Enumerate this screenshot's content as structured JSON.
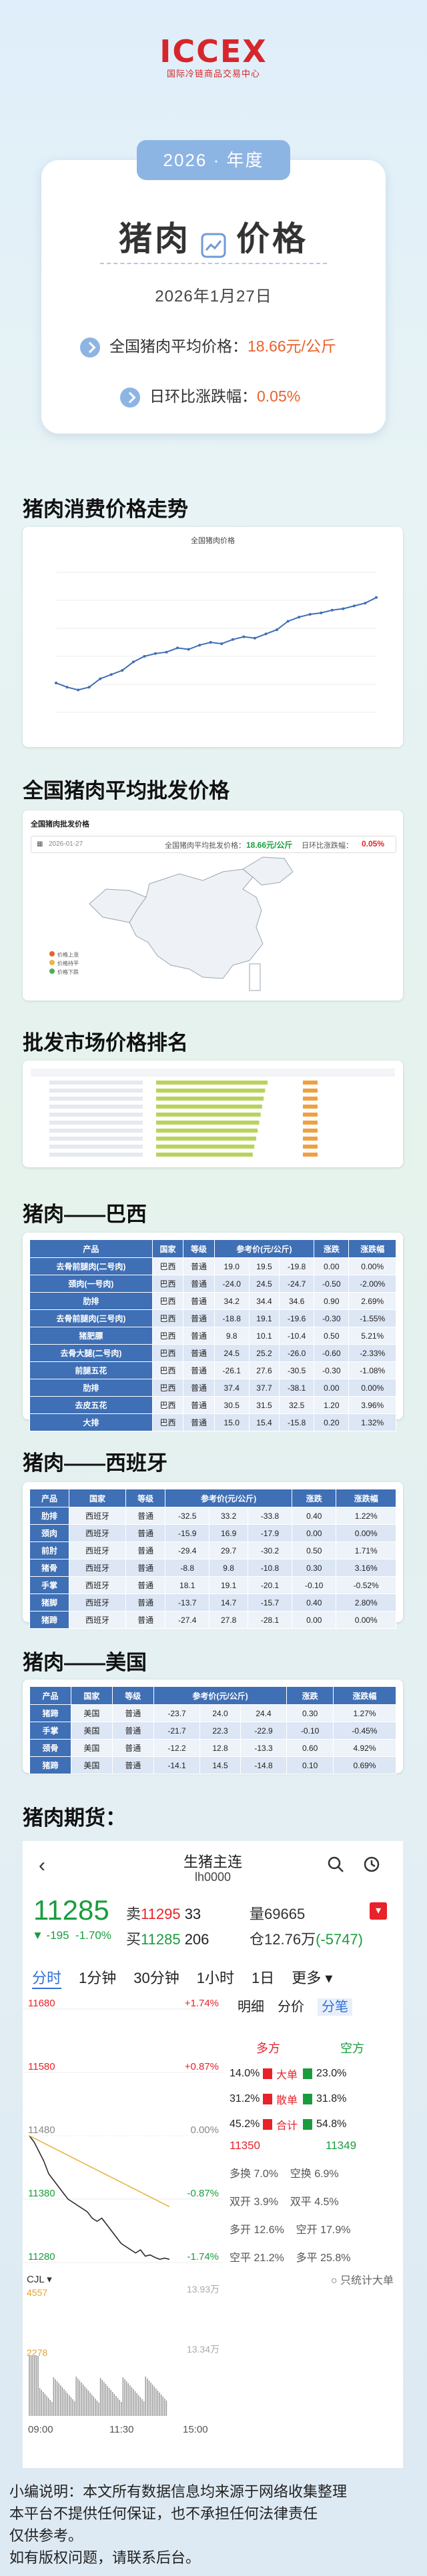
{
  "header": {
    "logo": "ICCEX",
    "logo_sub": "国际冷链商品交易中心",
    "year": "2026 · 年度",
    "title_left": "猪肉",
    "title_right": "价格",
    "date": "2026年1月27日",
    "avg_label": "全国猪肉平均价格：",
    "avg_value": "18.66元/公斤",
    "chg_label": "日环比涨跌幅：",
    "chg_value": "0.05%"
  },
  "sections": {
    "trend": "猪肉消费价格走势",
    "wholesale": "全国猪肉平均批发价格",
    "ranking": "批发市场价格排名",
    "brazil": "猪肉——巴西",
    "spain": "猪肉——西班牙",
    "usa": "猪肉——美国",
    "futures": "猪肉期货："
  },
  "chart_data": [
    {
      "type": "line",
      "title": "全国猪肉价格",
      "series": [
        {
          "values": [
            22.1,
            21.8,
            21.6,
            21.8,
            22.4,
            22.7,
            23.0,
            23.6,
            24.0,
            24.2,
            24.3,
            24.6,
            24.5,
            24.8,
            25.0,
            24.9,
            25.2,
            25.4,
            25.3,
            25.6,
            25.9,
            26.5,
            26.8,
            27.0,
            27.1,
            27.3,
            27.4,
            27.6,
            27.8,
            28.2
          ]
        }
      ],
      "ylim": [
        20,
        30
      ]
    },
    {
      "type": "map",
      "title": "全国猪肉批发价格",
      "date": "2026-01-27",
      "avg_label": "全国猪肉平均批发价格：",
      "avg_value": "18.66元/公斤",
      "chg_label": "日环比涨跌幅：",
      "chg_value": "0.05%",
      "legend": [
        "价格上涨",
        "价格持平",
        "价格下跌"
      ]
    },
    {
      "type": "bar",
      "title": "批发市场价格排名",
      "values": [
        22.6,
        22.1,
        21.8,
        21.5,
        21.2,
        20.9,
        20.6,
        20.3,
        19.9,
        19.6
      ]
    }
  ],
  "brazil": {
    "headers": [
      "产品",
      "国家",
      "等级",
      "参考价(元/公斤)",
      "",
      "",
      "涨跌",
      "涨跌幅"
    ],
    "rows": [
      [
        "去骨前腿肉(二号肉)",
        "巴西",
        "普通",
        "19.0",
        "19.5",
        "-19.8",
        "0.00",
        "0.00%"
      ],
      [
        "颈肉(一号肉)",
        "巴西",
        "普通",
        "-24.0",
        "24.5",
        "-24.7",
        "-0.50",
        "-2.00%"
      ],
      [
        "肋排",
        "巴西",
        "普通",
        "34.2",
        "34.4",
        "34.6",
        "0.90",
        "2.69%"
      ],
      [
        "去骨前腿肉(三号肉)",
        "巴西",
        "普通",
        "-18.8",
        "19.1",
        "-19.6",
        "-0.30",
        "-1.55%"
      ],
      [
        "猪肥膘",
        "巴西",
        "普通",
        "9.8",
        "10.1",
        "-10.4",
        "0.50",
        "5.21%"
      ],
      [
        "去骨大腿(二号肉)",
        "巴西",
        "普通",
        "24.5",
        "25.2",
        "-26.0",
        "-0.60",
        "-2.33%"
      ],
      [
        "前腿五花",
        "巴西",
        "普通",
        "-26.1",
        "27.6",
        "-30.5",
        "-0.30",
        "-1.08%"
      ],
      [
        "肋排",
        "巴西",
        "普通",
        "37.4",
        "37.7",
        "-38.1",
        "0.00",
        "0.00%"
      ],
      [
        "去皮五花",
        "巴西",
        "普通",
        "30.5",
        "31.5",
        "32.5",
        "1.20",
        "3.96%"
      ],
      [
        "大排",
        "巴西",
        "普通",
        "15.0",
        "15.4",
        "-15.8",
        "0.20",
        "1.32%"
      ]
    ]
  },
  "spain": {
    "headers": [
      "产品",
      "国家",
      "等级",
      "参考价(元/公斤)",
      "",
      "",
      "涨跌",
      "涨跌幅"
    ],
    "rows": [
      [
        "肋排",
        "西班牙",
        "普通",
        "-32.5",
        "33.2",
        "-33.8",
        "0.40",
        "1.22%"
      ],
      [
        "颈肉",
        "西班牙",
        "普通",
        "-15.9",
        "16.9",
        "-17.9",
        "0.00",
        "0.00%"
      ],
      [
        "前肘",
        "西班牙",
        "普通",
        "-29.4",
        "29.7",
        "-30.2",
        "0.50",
        "1.71%"
      ],
      [
        "猪骨",
        "西班牙",
        "普通",
        "-8.8",
        "9.8",
        "-10.8",
        "0.30",
        "3.16%"
      ],
      [
        "手掌",
        "西班牙",
        "普通",
        "18.1",
        "19.1",
        "-20.1",
        "-0.10",
        "-0.52%"
      ],
      [
        "猪脚",
        "西班牙",
        "普通",
        "-13.7",
        "14.7",
        "-15.7",
        "0.40",
        "2.80%"
      ],
      [
        "猪蹄",
        "西班牙",
        "普通",
        "-27.4",
        "27.8",
        "-28.1",
        "0.00",
        "0.00%"
      ]
    ]
  },
  "usa": {
    "headers": [
      "产品",
      "国家",
      "等级",
      "参考价(元/公斤)",
      "",
      "",
      "涨跌",
      "涨跌幅"
    ],
    "rows": [
      [
        "猪蹄",
        "美国",
        "普通",
        "-23.7",
        "24.0",
        "24.4",
        "0.30",
        "1.27%"
      ],
      [
        "手掌",
        "美国",
        "普通",
        "-21.7",
        "22.3",
        "-22.9",
        "-0.10",
        "-0.45%"
      ],
      [
        "颈骨",
        "美国",
        "普通",
        "-12.2",
        "12.8",
        "-13.3",
        "0.60",
        "4.92%"
      ],
      [
        "猪蹄",
        "美国",
        "普通",
        "-14.1",
        "14.5",
        "-14.8",
        "0.10",
        "0.69%"
      ]
    ]
  },
  "futures": {
    "name": "生猪主连",
    "code": "lh0000",
    "price": "11285",
    "sell_label": "卖",
    "sell_price": "11295",
    "sell_qty": "33",
    "buy_label": "买",
    "buy_price": "11285",
    "buy_qty": "206",
    "change": "▼ -195",
    "change_pct": "-1.70%",
    "vol_label": "量",
    "vol": "69665",
    "oi_label": "仓",
    "oi": "12.76万",
    "oi_chg": "(-5747)",
    "tabs": [
      "分时",
      "1分钟",
      "30分钟",
      "1小时",
      "1日",
      "更多 ▾"
    ],
    "side_tabs": [
      "明细",
      "分价",
      "分笔"
    ],
    "y_labels": [
      "11680",
      "11580",
      "11480",
      "11380",
      "11280"
    ],
    "pct_labels": [
      "+1.74%",
      "+0.87%",
      "0.00%",
      "-0.87%",
      "-1.74%"
    ],
    "vol_labels": [
      "4557",
      "2278"
    ],
    "oi_labels": [
      "13.93万",
      "13.34万"
    ],
    "times": [
      "09:00",
      "11:30",
      "15:00"
    ],
    "cjl": "CJL ▾",
    "side": {
      "duo": "多方",
      "kong": "空方",
      "rows": [
        [
          "14.0%",
          "大单",
          "23.0%"
        ],
        [
          "31.2%",
          "散单",
          "31.8%"
        ],
        [
          "45.2%",
          "合计",
          "54.8%"
        ]
      ],
      "px_l": "11350",
      "px_r": "11349",
      "stats": [
        [
          "多换",
          "7.0%",
          "空换",
          "6.9%"
        ],
        [
          "双开",
          "3.9%",
          "双平",
          "4.5%"
        ],
        [
          "多开",
          "12.6%",
          "空开",
          "17.9%"
        ],
        [
          "空平",
          "21.2%",
          "多平",
          "25.8%"
        ]
      ],
      "only": "只统计大单"
    },
    "line": [
      11480,
      11470,
      11455,
      11440,
      11420,
      11410,
      11400,
      11390,
      11380,
      11375,
      11370,
      11365,
      11360,
      11350,
      11345,
      11350,
      11340,
      11330,
      11320,
      11310,
      11305,
      11300,
      11295,
      11300,
      11290,
      11292,
      11288,
      11285,
      11287,
      11285
    ]
  },
  "footer": [
    "小编说明：本文所有数据信息均来源于网络收集整理",
    "本平台不提供任何保证，也不承担任何法律责任",
    "仅供参考。",
    "如有版权问题，请联系后台。"
  ]
}
